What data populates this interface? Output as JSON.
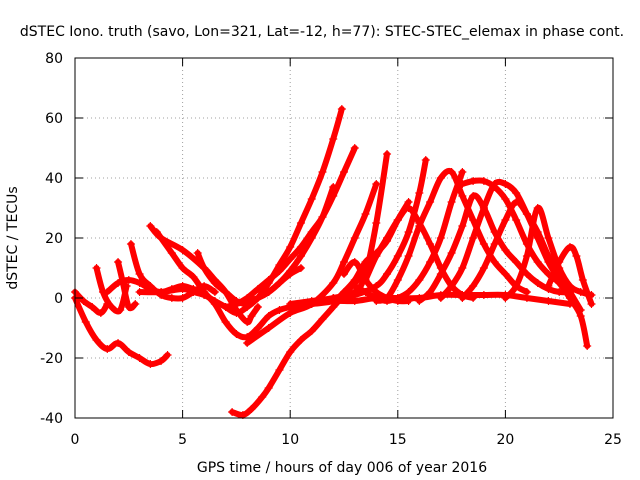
{
  "chart_data": {
    "type": "scatter",
    "title": "dSTEC Iono. truth (savo, Lon=321, Lat=-12, h=77): STEC-STEC_elemax in phase cont.",
    "xlabel": "GPS time / hours of day 006 of year 2016",
    "ylabel": "dSTEC  / TECUs",
    "xlim": [
      0,
      25
    ],
    "ylim": [
      -40,
      80
    ],
    "xticks": [
      0,
      5,
      10,
      15,
      20,
      25
    ],
    "yticks": [
      -40,
      -20,
      0,
      20,
      40,
      60,
      80
    ],
    "grid": true,
    "marker": "+",
    "series_color": "#ff0000",
    "series": [
      {
        "x": [
          0,
          0.5,
          1,
          1.5,
          2,
          2.5,
          3,
          3.5,
          4,
          4.3
        ],
        "y": [
          0,
          -8,
          -14,
          -17,
          -15,
          -18,
          -20,
          -22,
          -21,
          -19
        ]
      },
      {
        "x": [
          0,
          0.4,
          0.8,
          1.2,
          1.5
        ],
        "y": [
          2,
          -1,
          -3,
          -5,
          -2
        ]
      },
      {
        "x": [
          1,
          1.3,
          1.7,
          2.1,
          2.4
        ],
        "y": [
          10,
          2,
          -3,
          -4,
          4
        ]
      },
      {
        "x": [
          2,
          2.2,
          2.5,
          2.8
        ],
        "y": [
          12,
          6,
          -3,
          -2
        ]
      },
      {
        "x": [
          1.5,
          2,
          2.5,
          3,
          3.5,
          4,
          4.5,
          5,
          5.5,
          6
        ],
        "y": [
          2,
          5,
          6,
          5,
          3,
          2,
          3,
          4,
          3,
          2
        ]
      },
      {
        "x": [
          2.6,
          3,
          3.5,
          4,
          4.5,
          5,
          5.5,
          6,
          6.5
        ],
        "y": [
          18,
          8,
          4,
          1,
          0,
          0,
          2,
          4,
          2
        ]
      },
      {
        "x": [
          3.5,
          4,
          5,
          6,
          6.5,
          7,
          7.5,
          8,
          8.2,
          8.5
        ],
        "y": [
          24,
          20,
          16,
          10,
          6,
          2,
          -4,
          -8,
          -6,
          -3
        ]
      },
      {
        "x": [
          3.8,
          4.5,
          5,
          5.5,
          6,
          6.5,
          7,
          7.5,
          8,
          8.5,
          9,
          9.5,
          10
        ],
        "y": [
          22,
          15,
          10,
          7,
          2,
          -2,
          -8,
          -12,
          -13,
          -10,
          -6,
          -4,
          -3
        ]
      },
      {
        "x": [
          5.7,
          6,
          6.5,
          7,
          7.5,
          8,
          8.5,
          9,
          9.5,
          10,
          10.5
        ],
        "y": [
          15,
          10,
          5,
          2,
          -1,
          -2,
          0,
          2,
          5,
          8,
          10
        ]
      },
      {
        "x": [
          3,
          4,
          5,
          5.5,
          6,
          6.5,
          7,
          7.5,
          8,
          8.5,
          9,
          9.5,
          10,
          10.5,
          11,
          11.5,
          12,
          12.4
        ],
        "y": [
          2,
          2,
          3,
          2,
          1,
          -1,
          -3,
          -5,
          -3,
          0,
          5,
          11,
          17,
          25,
          33,
          42,
          53,
          63
        ]
      },
      {
        "x": [
          7,
          7.5,
          8,
          8.5,
          9,
          9.5,
          10,
          10.5,
          11,
          11.5,
          12,
          12.5,
          13
        ],
        "y": [
          -3,
          -2,
          0,
          3,
          6,
          9,
          13,
          17,
          22,
          27,
          34,
          42,
          50
        ]
      },
      {
        "x": [
          7.5,
          8,
          8.5,
          9,
          9.5,
          10,
          10.5,
          11,
          11.5,
          12
        ],
        "y": [
          -2,
          -1,
          0,
          2,
          5,
          9,
          14,
          20,
          27,
          37
        ]
      },
      {
        "x": [
          7.3,
          7.8,
          8.2,
          8.7,
          9,
          9.5,
          10,
          10.5,
          11,
          11.5,
          12,
          12.5,
          13,
          13.5,
          14,
          14.5
        ],
        "y": [
          -38,
          -39,
          -37,
          -33,
          -30,
          -24,
          -18,
          -14,
          -11,
          -7,
          -3,
          1,
          5,
          9,
          14,
          20
        ]
      },
      {
        "x": [
          10,
          11,
          12,
          13,
          13.5,
          14,
          14.5
        ],
        "y": [
          -2,
          -1,
          0,
          2,
          8,
          25,
          48
        ]
      },
      {
        "x": [
          8,
          9,
          10,
          11,
          12,
          12.5,
          13,
          13.5,
          14
        ],
        "y": [
          -15,
          -10,
          -5,
          -2,
          5,
          12,
          20,
          28,
          38
        ]
      },
      {
        "x": [
          10,
          11,
          12,
          12.5,
          13,
          13.5,
          14,
          14.5,
          15,
          15.5
        ],
        "y": [
          -3,
          -2,
          -1,
          2,
          6,
          12,
          15,
          19,
          26,
          32
        ]
      },
      {
        "x": [
          10,
          11,
          12,
          13,
          14,
          14.5,
          15,
          15.5,
          16,
          16.3
        ],
        "y": [
          -3,
          -2,
          0,
          1,
          4,
          8,
          14,
          22,
          35,
          46
        ]
      },
      {
        "x": [
          12.5,
          13,
          13.5,
          14,
          14.5,
          15,
          15.5
        ],
        "y": [
          8,
          12,
          6,
          2,
          0,
          -1,
          -1
        ]
      },
      {
        "x": [
          13,
          13.5,
          14,
          14.5,
          15,
          15.5,
          16,
          16.5,
          17,
          17.5,
          18
        ],
        "y": [
          4,
          2,
          0,
          -1,
          0,
          2,
          6,
          12,
          20,
          32,
          42
        ]
      },
      {
        "x": [
          13.5,
          14,
          14.5,
          15,
          15.5,
          16,
          16.5,
          17,
          17.5,
          18,
          18.5
        ],
        "y": [
          6,
          14,
          20,
          26,
          30,
          25,
          18,
          10,
          4,
          1,
          0
        ]
      },
      {
        "x": [
          14,
          14.5,
          15,
          15.5,
          16,
          16.5,
          17,
          17.5,
          18,
          18.5,
          19,
          19.5,
          20,
          20.5,
          21
        ],
        "y": [
          -1,
          0,
          6,
          14,
          24,
          32,
          40,
          42,
          34,
          26,
          18,
          12,
          8,
          4,
          2
        ]
      },
      {
        "x": [
          16,
          16.5,
          17,
          17.5,
          18,
          18.5,
          19,
          19.5,
          20,
          20.5,
          21,
          21.5,
          22,
          22.5,
          23
        ],
        "y": [
          -1,
          2,
          8,
          15,
          24,
          34,
          30,
          22,
          16,
          12,
          8,
          5,
          3,
          2,
          2
        ]
      },
      {
        "x": [
          17,
          17.5,
          18,
          18.5,
          19,
          19.5,
          20,
          20.5,
          21,
          21.5,
          22,
          22.5,
          23,
          23.5,
          23.8
        ],
        "y": [
          0,
          4,
          10,
          20,
          30,
          38,
          38,
          35,
          28,
          20,
          12,
          6,
          0,
          -6,
          -16
        ]
      },
      {
        "x": [
          18,
          18.5,
          19,
          19.5,
          20,
          20.5,
          21,
          21.5,
          22,
          22.5,
          23
        ],
        "y": [
          38,
          39,
          39,
          37,
          33,
          26,
          18,
          12,
          8,
          5,
          0
        ]
      },
      {
        "x": [
          18,
          18.5,
          19,
          19.5,
          20,
          20.5,
          21,
          21.5,
          22,
          22.5,
          23,
          23.5
        ],
        "y": [
          0,
          4,
          10,
          18,
          26,
          32,
          28,
          22,
          14,
          8,
          2,
          -4
        ]
      },
      {
        "x": [
          20,
          20.5,
          21,
          21.5,
          22,
          22.5,
          23,
          23.5,
          24
        ],
        "y": [
          0,
          4,
          14,
          30,
          20,
          10,
          4,
          2,
          1
        ]
      },
      {
        "x": [
          22,
          22.5,
          23,
          23.3,
          23.6,
          24
        ],
        "y": [
          4,
          12,
          17,
          14,
          6,
          -2
        ]
      },
      {
        "x": [
          11,
          12,
          13,
          14,
          15,
          16,
          17,
          18,
          19,
          20,
          21,
          22,
          23
        ],
        "y": [
          -2,
          -1,
          -1,
          0,
          0,
          0,
          1,
          1,
          1,
          1,
          0,
          -1,
          -2
        ]
      }
    ]
  }
}
